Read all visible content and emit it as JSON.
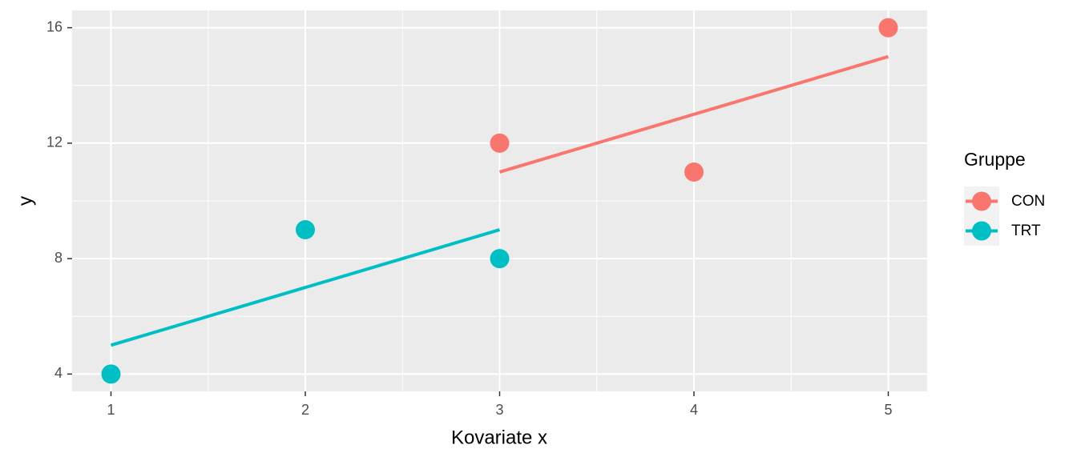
{
  "chart_data": {
    "type": "scatter",
    "x_label": "Kovariate x",
    "y_label": "y",
    "legend_title": "Gruppe",
    "xlim": [
      0.8,
      5.2
    ],
    "ylim": [
      3.4,
      16.6
    ],
    "xticks": [
      1,
      2,
      3,
      4,
      5
    ],
    "yticks": [
      4,
      8,
      12,
      16
    ],
    "grid": true,
    "series": [
      {
        "name": "CON",
        "color": "#f8766d",
        "x": [
          3,
          4,
          5
        ],
        "values": [
          12,
          11,
          16
        ],
        "fit": {
          "x": [
            3,
            5
          ],
          "values": [
            11,
            15
          ]
        }
      },
      {
        "name": "TRT",
        "color": "#00bfc4",
        "x": [
          1,
          2,
          3
        ],
        "values": [
          4,
          9,
          8
        ],
        "fit": {
          "x": [
            1,
            3
          ],
          "values": [
            5,
            9
          ]
        }
      }
    ]
  }
}
